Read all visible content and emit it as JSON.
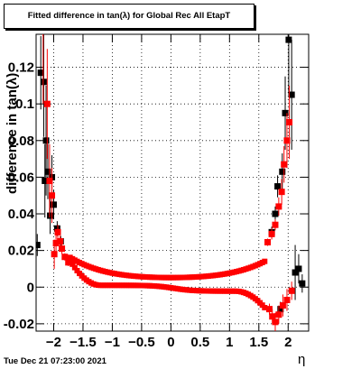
{
  "chart_data": {
    "type": "scatter",
    "title": "Fitted difference in tan(λ) for Global Rec All EtapT",
    "xlabel": "η",
    "ylabel": "difference in tan(λ)",
    "xlim": [
      -2.3,
      2.35
    ],
    "ylim": [
      -0.024,
      0.138
    ],
    "xticks": [
      -2,
      -1.5,
      -1,
      -0.5,
      0,
      0.5,
      1,
      1.5,
      2
    ],
    "xtick_labels": [
      "−2",
      "−1.5",
      "−1",
      "−0.5",
      "0",
      "0.5",
      "1",
      "1.5",
      "2"
    ],
    "yticks": [
      -0.02,
      0,
      0.02,
      0.04,
      0.06,
      0.08,
      0.1,
      0.12
    ],
    "ytick_labels": [
      "-0.02",
      "0",
      "0.02",
      "0.04",
      "0.06",
      "0.08",
      "0.1",
      "0.12"
    ],
    "grid": true,
    "series": [
      {
        "color": "#000000",
        "points": [
          {
            "x": -2.28,
            "y": 0.023,
            "e": 0.006
          },
          {
            "x": -2.22,
            "y": 0.117,
            "e": 0.02
          },
          {
            "x": -2.17,
            "y": 0.112,
            "e": 0.03
          },
          {
            "x": -2.15,
            "y": 0.058,
            "e": 0.02
          },
          {
            "x": -2.13,
            "y": 0.08,
            "e": 0.03
          },
          {
            "x": -2.1,
            "y": 0.063,
            "e": 0.015
          },
          {
            "x": -2.06,
            "y": 0.039,
            "e": 0.01
          },
          {
            "x": -2.03,
            "y": 0.06,
            "e": 0.012
          },
          {
            "x": -2.0,
            "y": 0.045,
            "e": 0.008
          },
          {
            "x": -1.94,
            "y": 0.032,
            "e": 0.004
          },
          {
            "x": -1.88,
            "y": 0.025,
            "e": 0.003
          },
          {
            "x": 1.72,
            "y": 0.03,
            "e": 0.003
          },
          {
            "x": 1.78,
            "y": 0.04,
            "e": 0.004
          },
          {
            "x": 1.82,
            "y": 0.055,
            "e": 0.006
          },
          {
            "x": 1.87,
            "y": -0.012,
            "e": 0.004
          },
          {
            "x": 1.9,
            "y": 0.063,
            "e": 0.01
          },
          {
            "x": 1.95,
            "y": 0.095,
            "e": 0.02
          },
          {
            "x": 2.01,
            "y": 0.135,
            "e": 0.03
          },
          {
            "x": 2.06,
            "y": 0.105,
            "e": 0.03
          },
          {
            "x": 2.12,
            "y": 0.008,
            "e": 0.015
          },
          {
            "x": 2.18,
            "y": 0.01,
            "e": 0.008
          },
          {
            "x": 2.24,
            "y": 0.002,
            "e": 0.005
          }
        ]
      },
      {
        "color": "#ff0000",
        "points": [
          {
            "x": -2.18,
            "y": 0.14,
            "e": 0.04
          },
          {
            "x": -2.11,
            "y": 0.1,
            "e": 0.03
          },
          {
            "x": -2.07,
            "y": 0.058,
            "e": 0.02
          },
          {
            "x": -2.03,
            "y": 0.05,
            "e": 0.015
          },
          {
            "x": -1.99,
            "y": 0.018,
            "e": 0.008
          },
          {
            "x": -1.96,
            "y": 0.024,
            "e": 0.005
          },
          {
            "x": -1.93,
            "y": 0.03,
            "e": 0.004
          },
          {
            "x": -1.89,
            "y": 0.025,
            "e": 0.003
          },
          {
            "x": -1.86,
            "y": 0.021,
            "e": 0.003
          },
          {
            "x": -1.81,
            "y": 0.0165,
            "e": 0.002
          },
          {
            "x": -1.75,
            "y": 0.0135,
            "e": 0.002
          },
          {
            "x": 1.65,
            "y": 0.0245,
            "e": 0.002
          },
          {
            "x": 1.72,
            "y": 0.029,
            "e": 0.003
          },
          {
            "x": 1.78,
            "y": 0.034,
            "e": 0.003
          },
          {
            "x": 1.84,
            "y": 0.044,
            "e": 0.005
          },
          {
            "x": 1.89,
            "y": 0.052,
            "e": 0.007
          },
          {
            "x": 1.93,
            "y": 0.067,
            "e": 0.01
          },
          {
            "x": 1.98,
            "y": 0.08,
            "e": 0.015
          },
          {
            "x": 2.02,
            "y": 0.09,
            "e": 0.02
          },
          {
            "x": 1.68,
            "y": -0.012,
            "e": 0.003
          },
          {
            "x": 1.73,
            "y": -0.016,
            "e": 0.004
          },
          {
            "x": 1.78,
            "y": -0.019,
            "e": 0.005
          },
          {
            "x": 1.84,
            "y": -0.015,
            "e": 0.005
          },
          {
            "x": 1.91,
            "y": -0.01,
            "e": 0.006
          },
          {
            "x": 1.98,
            "y": -0.007,
            "e": 0.006
          },
          {
            "x": 2.06,
            "y": -0.002,
            "e": 0.005
          }
        ]
      }
    ]
  },
  "footer": "Tue Dec 21 07:23:00 2021"
}
